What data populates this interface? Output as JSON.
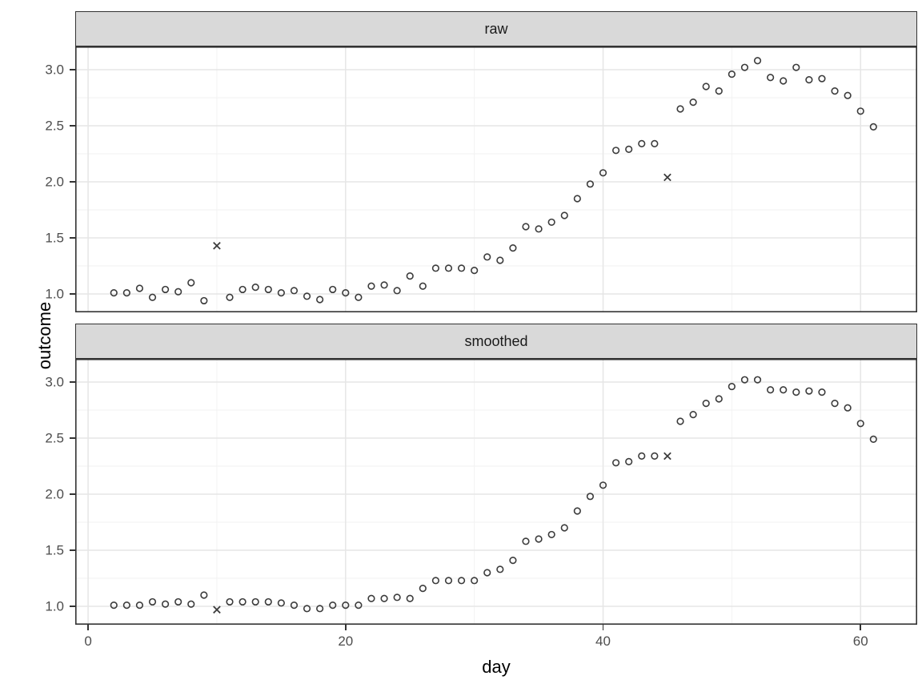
{
  "chart_data": {
    "type": "scatter",
    "title": "",
    "xlabel": "day",
    "ylabel": "outcome",
    "grid": "on",
    "legend": "none",
    "point_marker": "open-circle",
    "outlier_marker": "x-cross",
    "xlim": [
      -1.0,
      64.4
    ],
    "ylim": [
      0.836,
      3.207
    ],
    "x_ticks": [
      0,
      20,
      40,
      60
    ],
    "x_tick_labels": [
      "0",
      "20",
      "40",
      "60"
    ],
    "x_minor_ticks": [
      10,
      30,
      50
    ],
    "y_ticks": [
      1.0,
      1.5,
      2.0,
      2.5,
      3.0
    ],
    "y_tick_labels": [
      "1.0",
      "1.5",
      "2.0",
      "2.5",
      "3.0"
    ],
    "y_minor_ticks": [
      1.25,
      1.75,
      2.25,
      2.75
    ],
    "days": [
      2,
      3,
      4,
      5,
      6,
      7,
      8,
      9,
      10,
      11,
      12,
      13,
      14,
      15,
      16,
      17,
      18,
      19,
      20,
      21,
      22,
      23,
      24,
      25,
      26,
      27,
      28,
      29,
      30,
      31,
      32,
      33,
      34,
      35,
      36,
      37,
      38,
      39,
      40,
      41,
      42,
      43,
      44,
      45,
      46,
      47,
      48,
      49,
      50,
      51,
      52,
      53,
      54,
      55,
      56,
      57,
      58,
      59,
      60,
      61
    ],
    "facets": [
      {
        "label": "raw",
        "values": [
          1.01,
          1.01,
          1.05,
          0.97,
          1.04,
          1.02,
          1.1,
          0.94,
          1.43,
          0.97,
          1.04,
          1.06,
          1.04,
          1.01,
          1.03,
          0.98,
          0.95,
          1.04,
          1.01,
          0.97,
          1.07,
          1.08,
          1.03,
          1.16,
          1.07,
          1.23,
          1.23,
          1.23,
          1.21,
          1.33,
          1.3,
          1.41,
          1.6,
          1.58,
          1.64,
          1.7,
          1.85,
          1.98,
          2.08,
          2.28,
          2.29,
          2.34,
          2.34,
          2.04,
          2.65,
          2.71,
          2.85,
          2.81,
          2.96,
          3.02,
          3.08,
          2.93,
          2.9,
          3.02,
          2.91,
          2.92,
          2.81,
          2.77,
          2.63,
          2.49
        ],
        "outlier_days": [
          10,
          45
        ]
      },
      {
        "label": "smoothed",
        "values": [
          1.01,
          1.01,
          1.01,
          1.04,
          1.02,
          1.04,
          1.02,
          1.1,
          0.97,
          1.04,
          1.04,
          1.04,
          1.04,
          1.03,
          1.01,
          0.98,
          0.98,
          1.01,
          1.01,
          1.01,
          1.07,
          1.07,
          1.08,
          1.07,
          1.16,
          1.23,
          1.23,
          1.23,
          1.23,
          1.3,
          1.33,
          1.41,
          1.58,
          1.6,
          1.64,
          1.7,
          1.85,
          1.98,
          2.08,
          2.28,
          2.29,
          2.34,
          2.34,
          2.34,
          2.65,
          2.71,
          2.81,
          2.85,
          2.96,
          3.02,
          3.02,
          2.93,
          2.93,
          2.91,
          2.92,
          2.91,
          2.81,
          2.77,
          2.63,
          2.49
        ],
        "outlier_days": [
          10,
          45
        ]
      }
    ],
    "colors": {
      "background": "#ffffff",
      "strip_fill": "#d9d9d9",
      "panel_border": "#333333",
      "grid_major": "#e6e6e6",
      "grid_minor": "#f2f2f2",
      "point": "#3c3c3c",
      "tick": "#333333",
      "tick_label": "#4d4d4d",
      "axis_title": "#000000"
    }
  }
}
